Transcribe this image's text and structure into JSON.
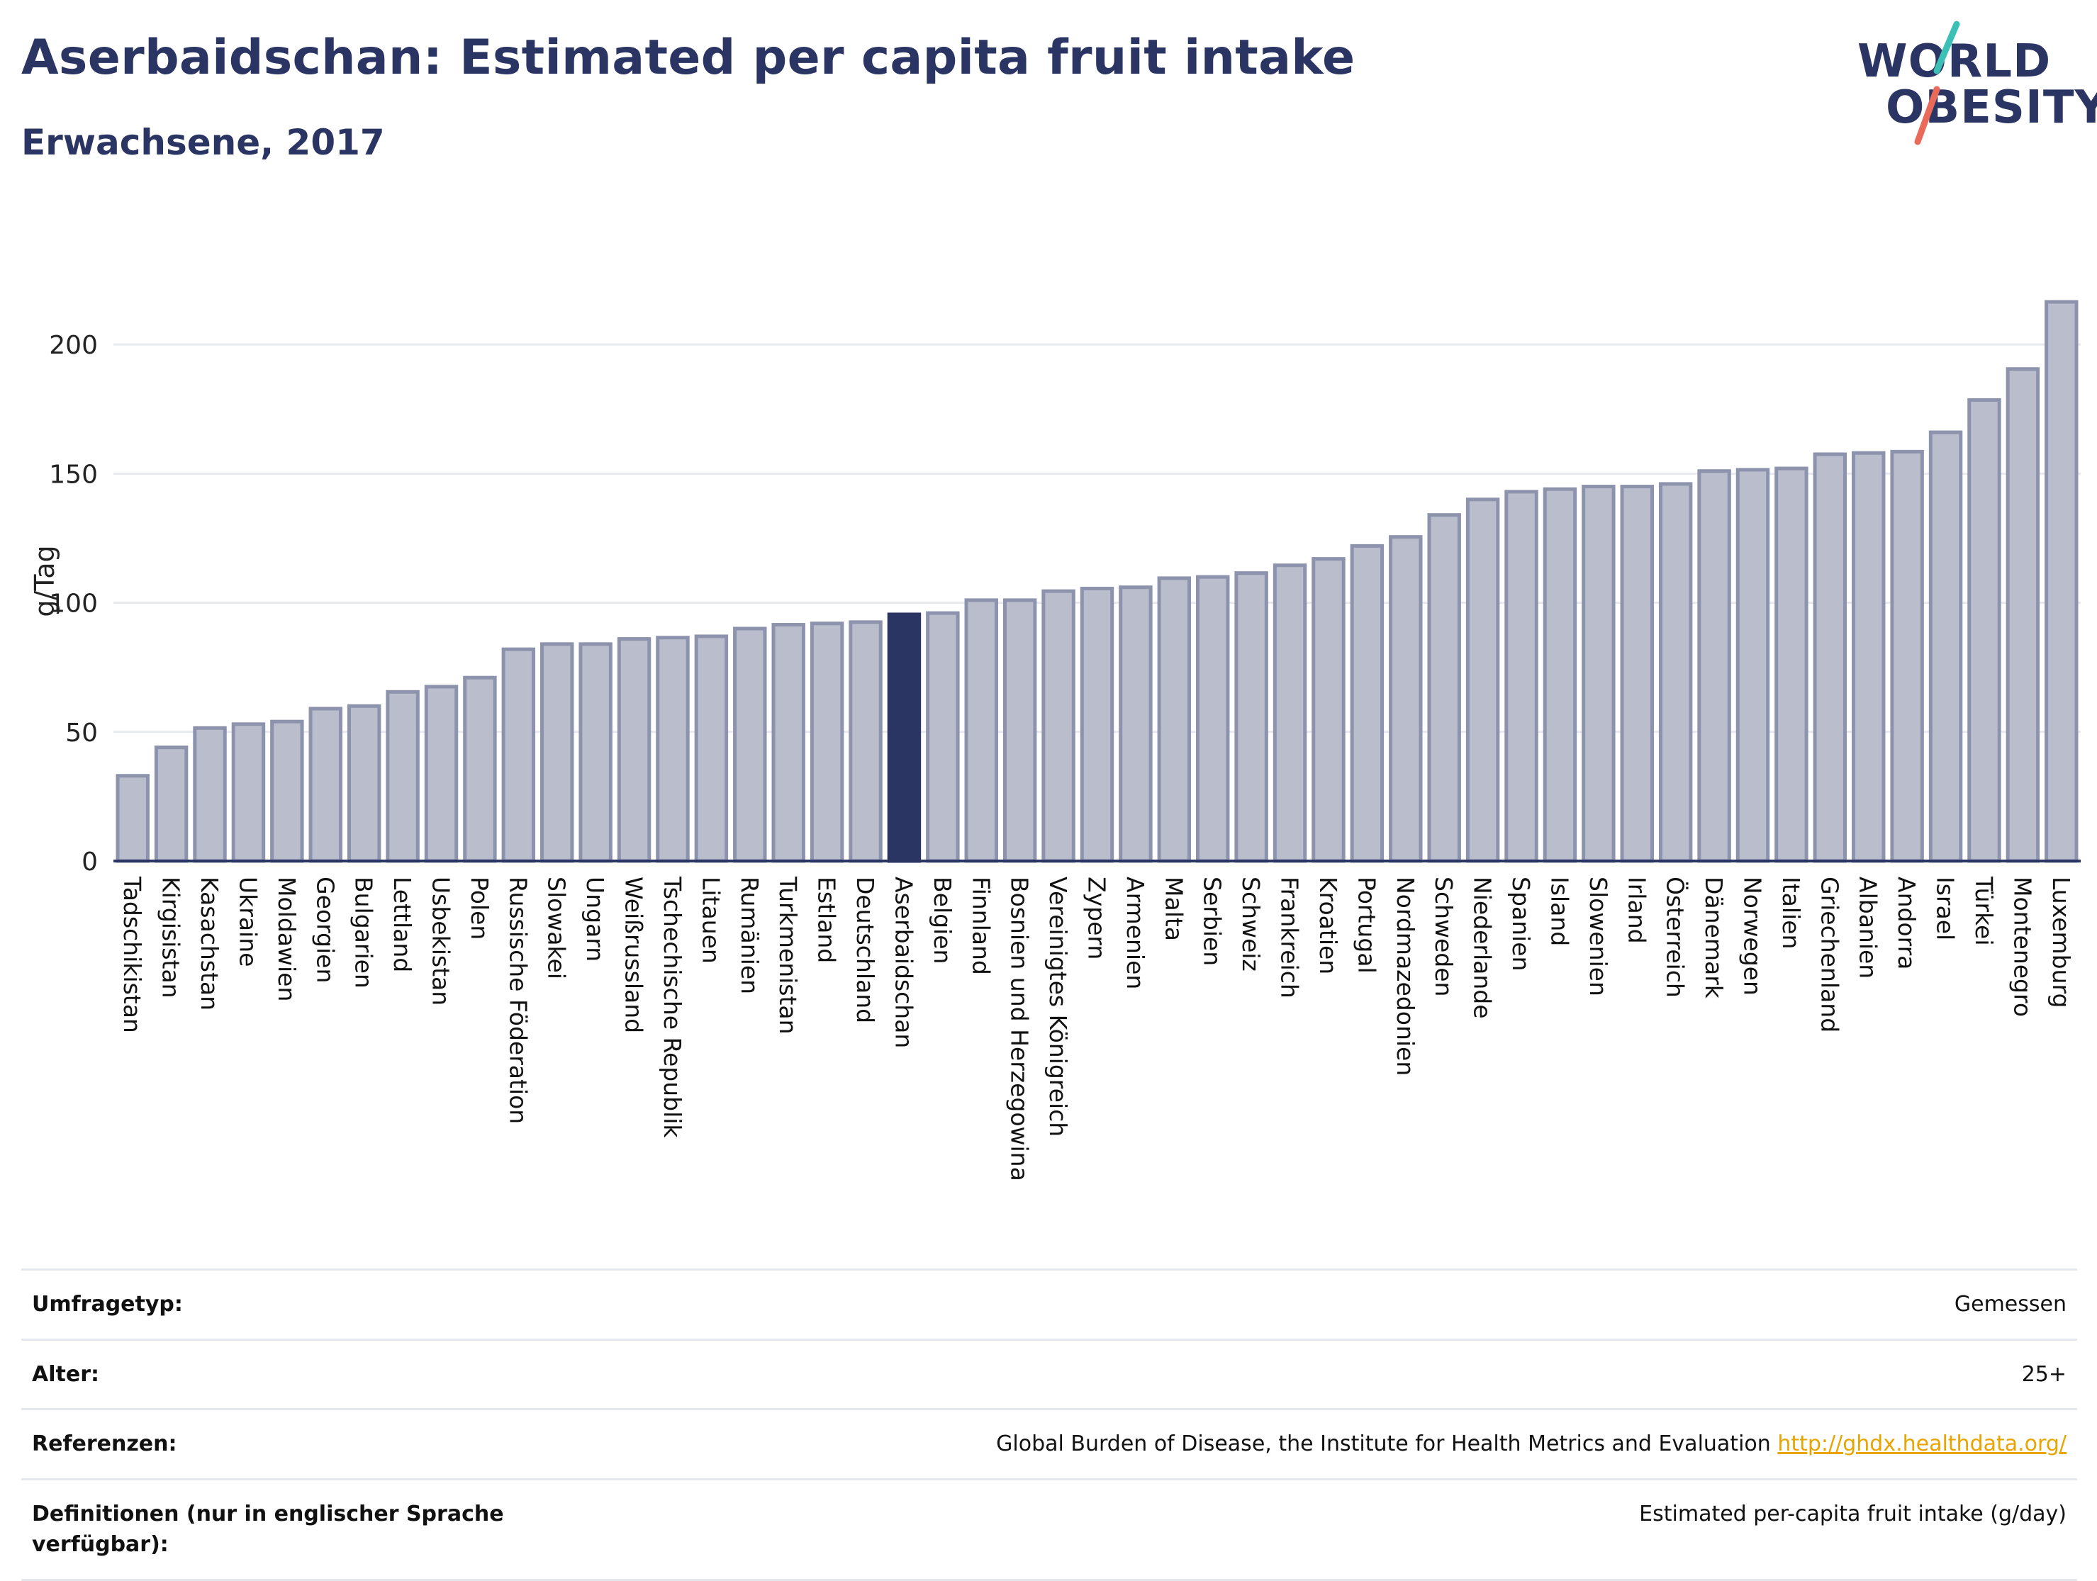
{
  "header": {
    "title": "Aserbaidschan: Estimated per capita fruit intake",
    "subtitle": "Erwachsene, 2017"
  },
  "logo": {
    "line1": "WORLD",
    "line2": "OBESITY",
    "slash_colors": [
      "#3cc0b6",
      "#ea6a5a"
    ]
  },
  "colors": {
    "bar_default": "#b9bdcc",
    "bar_border": "#8d93ad",
    "bar_highlight": "#2b3563",
    "axis": "#2b3563",
    "grid": "#e8e9ef"
  },
  "chart_data": {
    "type": "bar",
    "ylabel": "g/Tag",
    "ylim": [
      0,
      225
    ],
    "yticks": [
      0,
      50,
      100,
      150,
      200
    ],
    "grid": true,
    "highlight": "Aserbaidschan",
    "categories": [
      "Tadschikistan",
      "Kirgisistan",
      "Kasachstan",
      "Ukraine",
      "Moldawien",
      "Georgien",
      "Bulgarien",
      "Lettland",
      "Usbekistan",
      "Polen",
      "Russische Föderation",
      "Slowakei",
      "Ungarn",
      "Weißrussland",
      "Tschechische Republik",
      "Litauen",
      "Rumänien",
      "Turkmenistan",
      "Estland",
      "Deutschland",
      "Aserbaidschan",
      "Belgien",
      "Finnland",
      "Bosnien und Herzegowina",
      "Vereinigtes Königreich",
      "Zypern",
      "Armenien",
      "Malta",
      "Serbien",
      "Schweiz",
      "Frankreich",
      "Kroatien",
      "Portugal",
      "Nordmazedonien",
      "Schweden",
      "Niederlande",
      "Spanien",
      "Island",
      "Slowenien",
      "Irland",
      "Österreich",
      "Dänemark",
      "Norwegen",
      "Italien",
      "Griechenland",
      "Albanien",
      "Andorra",
      "Israel",
      "Türkei",
      "Montenegro",
      "Luxemburg"
    ],
    "values": [
      33,
      44,
      51.5,
      53,
      54,
      59,
      60,
      65.5,
      67.5,
      71,
      82,
      84,
      84,
      86,
      86.5,
      87,
      90,
      91.5,
      92,
      92.5,
      95.5,
      96,
      101,
      101,
      104.5,
      105.5,
      106,
      109.5,
      110,
      111.5,
      114.5,
      117,
      122,
      125.5,
      134,
      140,
      143,
      144,
      145,
      145,
      146,
      151,
      151.5,
      152,
      157.5,
      158,
      158.5,
      166,
      178.5,
      190.5,
      216.5
    ]
  },
  "meta": {
    "rows": [
      {
        "label": "Umfragetyp:",
        "value": "Gemessen"
      },
      {
        "label": "Alter:",
        "value": "25+"
      },
      {
        "label": "Referenzen:",
        "value": "Global Burden of Disease, the Institute for Health Metrics and Evaluation ",
        "link": "http://ghdx.healthdata.org/"
      },
      {
        "label": "Definitionen (nur in englischer Sprache verfügbar):",
        "value": "Estimated per-capita fruit intake (g/day)"
      }
    ]
  }
}
